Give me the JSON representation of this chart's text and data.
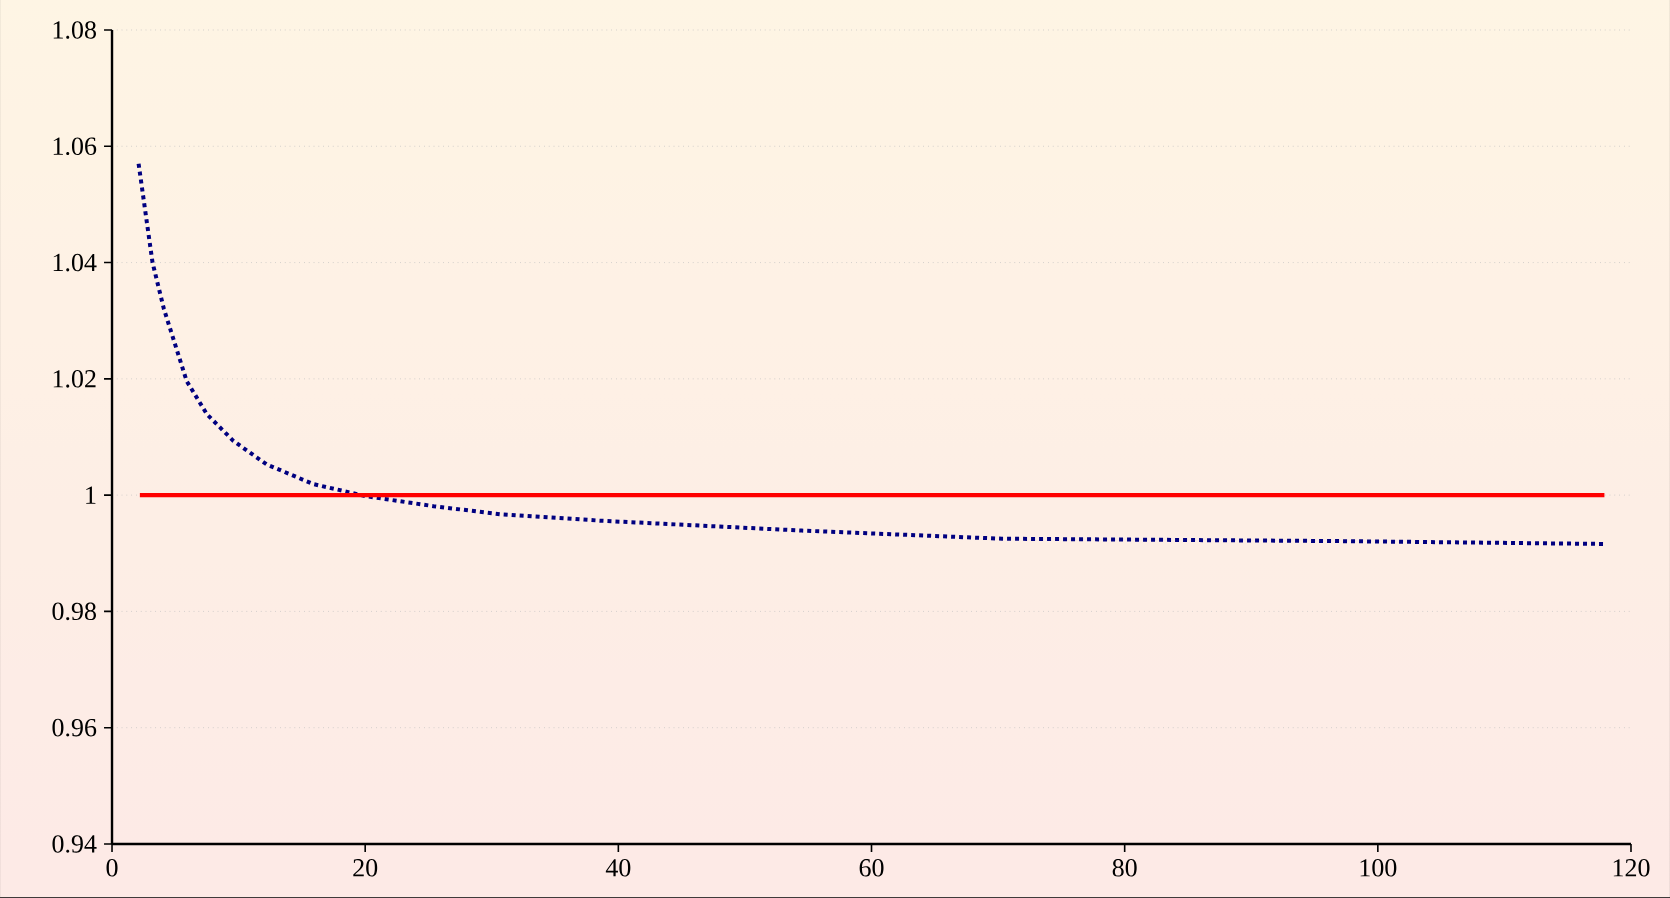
{
  "chart_data": {
    "type": "line",
    "xlim": [
      0,
      120
    ],
    "xticks": [
      0,
      20,
      40,
      60,
      80,
      100,
      120
    ],
    "ylim": [
      0.94,
      1.08
    ],
    "yticks": [
      0.94,
      0.96,
      0.98,
      1,
      1.02,
      1.04,
      1.06,
      1.08
    ],
    "grid": "y",
    "series": [
      {
        "color": "#000080",
        "line_style": "dotted",
        "x": [
          2.1,
          3.2,
          4.1,
          4.9,
          5.9,
          7.5,
          9.6,
          12.2,
          15.9,
          20.1,
          25.4,
          30.7,
          38.6,
          54.5,
          70.3,
          96.7,
          117.8
        ],
        "values": [
          1.057,
          1.04,
          1.032,
          1.0265,
          1.0196,
          1.0139,
          1.0093,
          1.0053,
          1.0019,
          0.9998,
          0.9981,
          0.9967,
          0.9956,
          0.9939,
          0.9925,
          0.9921,
          0.9916
        ]
      },
      {
        "color": "#ff0000",
        "line_style": "solid",
        "x": [
          2.2,
          117.9
        ],
        "values": [
          1,
          1
        ]
      }
    ]
  }
}
